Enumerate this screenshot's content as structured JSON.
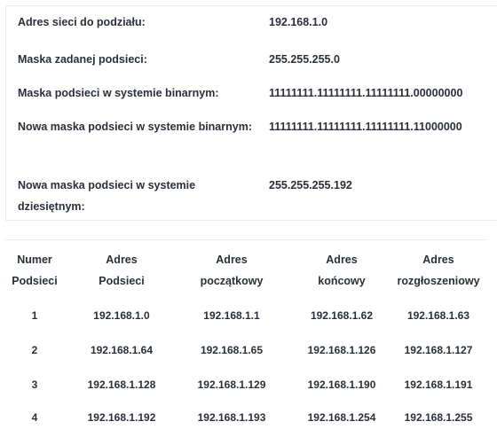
{
  "info": [
    {
      "label": "Adres sieci do podziału:",
      "value": "192.168.1.0"
    },
    {
      "label": "Maska zadanej podsieci:",
      "value": "255.255.255.0"
    },
    {
      "label": "Maska podsieci w systemie binarnym:",
      "value": "11111111.11111111.11111111.00000000"
    },
    {
      "label": "Nowa maska podsieci w systemie binarnym:",
      "value": "11111111.11111111.11111111.11000000"
    },
    {
      "label": "Nowa maska podsieci w systemie dziesiętnym:",
      "value": "255.255.255.192"
    }
  ],
  "table": {
    "headers": [
      {
        "line1": "Numer",
        "line2": "Podsieci"
      },
      {
        "line1": "Adres",
        "line2": "Podsieci"
      },
      {
        "line1": "Adres",
        "line2": "początkowy"
      },
      {
        "line1": "Adres",
        "line2": "końcowy"
      },
      {
        "line1": "Adres",
        "line2": "rozgłoszeniowy"
      }
    ],
    "rows": [
      [
        "1",
        "192.168.1.0",
        "192.168.1.1",
        "192.168.1.62",
        "192.168.1.63"
      ],
      [
        "2",
        "192.168.1.64",
        "192.168.1.65",
        "192.168.1.126",
        "192.168.1.127"
      ],
      [
        "3",
        "192.168.1.128",
        "192.168.1.129",
        "192.168.1.190",
        "192.168.1.191"
      ],
      [
        "4",
        "192.168.1.192",
        "192.168.1.193",
        "192.168.1.254",
        "192.168.1.255"
      ]
    ]
  }
}
